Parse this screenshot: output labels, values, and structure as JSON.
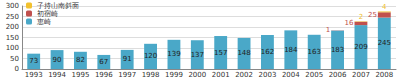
{
  "chart_data": {
    "type": "bar",
    "stacked": true,
    "data_labels": true,
    "grid": true,
    "legend": "top-left",
    "categories": [
      "1993",
      "1994",
      "1995",
      "1996",
      "1997",
      "1998",
      "1999",
      "2000",
      "2001",
      "2002",
      "2003",
      "2004",
      "2005",
      "2006",
      "2007",
      "2008"
    ],
    "series": [
      {
        "name": "恵崎",
        "color": "#4aa8c8",
        "values": [
          73,
          90,
          82,
          67,
          91,
          120,
          139,
          137,
          157,
          148,
          162,
          184,
          163,
          183,
          209,
          245
        ]
      },
      {
        "name": "初宿崎",
        "color": "#c0504d",
        "values": [
          null,
          null,
          null,
          null,
          null,
          null,
          null,
          null,
          null,
          null,
          null,
          null,
          null,
          1,
          16,
          25
        ]
      },
      {
        "name": "子持山南斜面",
        "color": "#f2c12e",
        "values": [
          null,
          null,
          null,
          null,
          null,
          null,
          null,
          null,
          null,
          null,
          null,
          null,
          null,
          null,
          2,
          4
        ]
      }
    ],
    "ylim": [
      0,
      300
    ],
    "yticks": [
      0,
      50,
      100,
      150,
      200,
      250,
      300
    ]
  }
}
